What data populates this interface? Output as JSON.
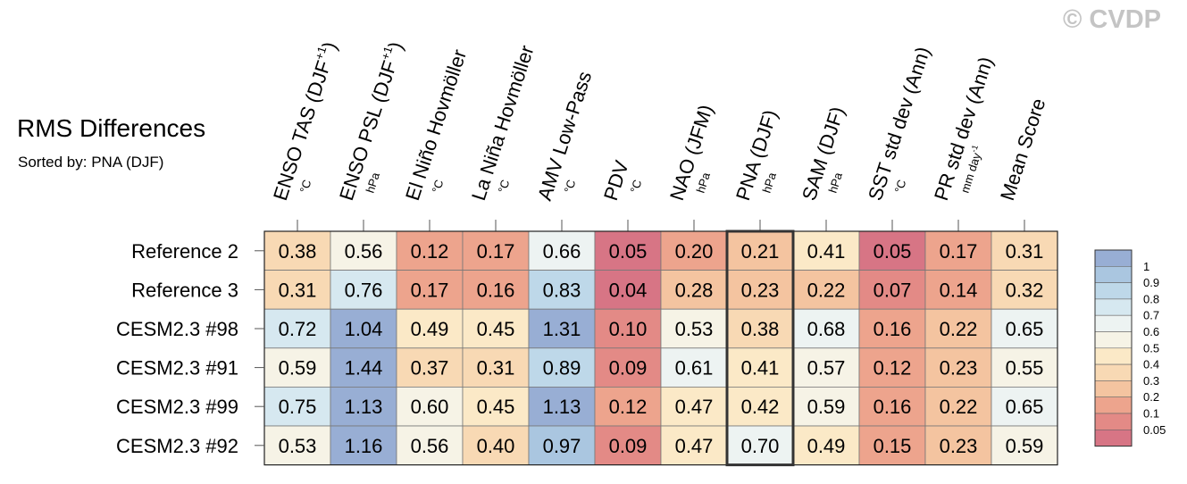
{
  "title": "RMS Differences",
  "subtitle": "Sorted by: PNA (DJF)",
  "watermark": "© CVDP",
  "chart_data": {
    "type": "heatmap",
    "columns": [
      {
        "label": "ENSO TAS (DJF",
        "sup": "+1",
        "close": ")",
        "unit": "°C"
      },
      {
        "label": "ENSO PSL (DJF",
        "sup": "+1",
        "close": ")",
        "unit": "hPa"
      },
      {
        "label": "El Niño Hovmöller",
        "sup": "",
        "close": "",
        "unit": "°C"
      },
      {
        "label": "La Niña Hovmöller",
        "sup": "",
        "close": "",
        "unit": "°C"
      },
      {
        "label": "AMV Low-Pass",
        "sup": "",
        "close": "",
        "unit": "°C"
      },
      {
        "label": "PDV",
        "sup": "",
        "close": "",
        "unit": "°C"
      },
      {
        "label": "NAO (JFM)",
        "sup": "",
        "close": "",
        "unit": "hPa"
      },
      {
        "label": "PNA (DJF)",
        "sup": "",
        "close": "",
        "unit": "hPa"
      },
      {
        "label": "SAM (DJF)",
        "sup": "",
        "close": "",
        "unit": "hPa"
      },
      {
        "label": "SST std dev (Ann)",
        "sup": "",
        "close": "",
        "unit": "°C"
      },
      {
        "label": "PR std dev (Ann)",
        "sup": "",
        "close": "",
        "unit": "mm day-1"
      },
      {
        "label": "Mean Score",
        "sup": "",
        "close": "",
        "unit": ""
      }
    ],
    "rows": [
      "Reference 2",
      "Reference 3",
      "CESM2.3 #98",
      "CESM2.3 #91",
      "CESM2.3 #99",
      "CESM2.3 #92"
    ],
    "values": [
      [
        0.38,
        0.56,
        0.12,
        0.17,
        0.66,
        0.05,
        0.2,
        0.21,
        0.41,
        0.05,
        0.17,
        0.31
      ],
      [
        0.31,
        0.76,
        0.17,
        0.16,
        0.83,
        0.04,
        0.28,
        0.23,
        0.22,
        0.07,
        0.14,
        0.32
      ],
      [
        0.72,
        1.04,
        0.49,
        0.45,
        1.31,
        0.1,
        0.53,
        0.38,
        0.68,
        0.16,
        0.22,
        0.65
      ],
      [
        0.59,
        1.44,
        0.37,
        0.31,
        0.89,
        0.09,
        0.61,
        0.41,
        0.57,
        0.12,
        0.23,
        0.55
      ],
      [
        0.75,
        1.13,
        0.6,
        0.45,
        1.13,
        0.12,
        0.47,
        0.42,
        0.59,
        0.16,
        0.22,
        0.65
      ],
      [
        0.53,
        1.16,
        0.56,
        0.4,
        0.97,
        0.09,
        0.47,
        0.7,
        0.49,
        0.15,
        0.23,
        0.59
      ]
    ],
    "value_labels": [
      [
        "0.38",
        "0.56",
        "0.12",
        "0.17",
        "0.66",
        "0.05",
        "0.20",
        "0.21",
        "0.41",
        "0.05",
        "0.17",
        "0.31"
      ],
      [
        "0.31",
        "0.76",
        "0.17",
        "0.16",
        "0.83",
        "0.04",
        "0.28",
        "0.23",
        "0.22",
        "0.07",
        "0.14",
        "0.32"
      ],
      [
        "0.72",
        "1.04",
        "0.49",
        "0.45",
        "1.31",
        "0.10",
        "0.53",
        "0.38",
        "0.68",
        "0.16",
        "0.22",
        "0.65"
      ],
      [
        "0.59",
        "1.44",
        "0.37",
        "0.31",
        "0.89",
        "0.09",
        "0.61",
        "0.41",
        "0.57",
        "0.12",
        "0.23",
        "0.55"
      ],
      [
        "0.75",
        "1.13",
        "0.60",
        "0.45",
        "1.13",
        "0.12",
        "0.47",
        "0.42",
        "0.59",
        "0.16",
        "0.22",
        "0.65"
      ],
      [
        "0.53",
        "1.16",
        "0.56",
        "0.40",
        "0.97",
        "0.09",
        "0.47",
        "0.70",
        "0.49",
        "0.15",
        "0.23",
        "0.59"
      ]
    ],
    "highlight_column": 7,
    "colorbar": {
      "labels": [
        "1",
        "0.9",
        "0.8",
        "0.7",
        "0.6",
        "0.5",
        "0.4",
        "0.3",
        "0.2",
        "0.1",
        "0.05"
      ],
      "colors": [
        "#98aed4",
        "#aac6e0",
        "#bed8e9",
        "#d6e8f0",
        "#edf3f2",
        "#f6f3e6",
        "#fbe9c7",
        "#f8d9b4",
        "#f4c4a0",
        "#eda48d",
        "#e38a86",
        "#d77585"
      ]
    }
  }
}
